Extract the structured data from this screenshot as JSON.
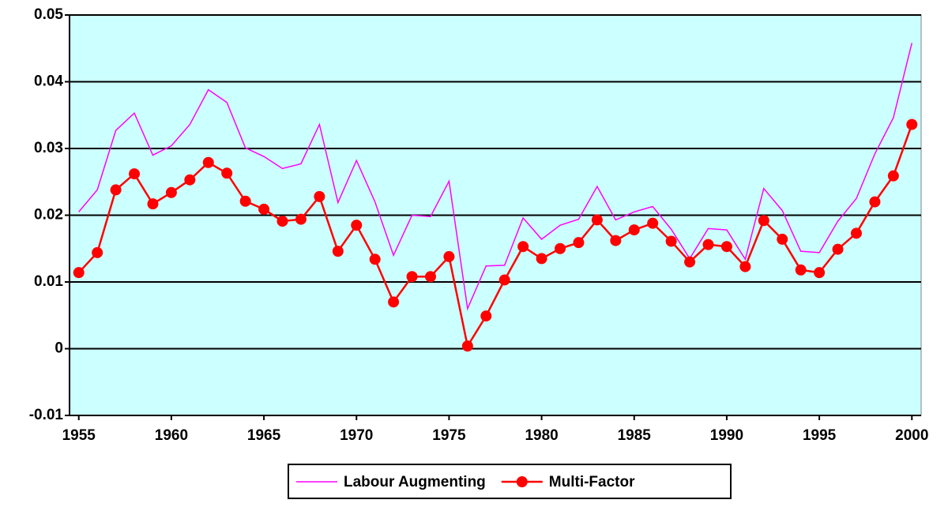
{
  "chart_data": {
    "type": "line",
    "x": [
      1955,
      1956,
      1957,
      1958,
      1959,
      1960,
      1961,
      1962,
      1963,
      1964,
      1965,
      1966,
      1967,
      1968,
      1969,
      1970,
      1971,
      1972,
      1973,
      1974,
      1975,
      1976,
      1977,
      1978,
      1979,
      1980,
      1981,
      1982,
      1983,
      1984,
      1985,
      1986,
      1987,
      1988,
      1989,
      1990,
      1991,
      1992,
      1993,
      1994,
      1995,
      1996,
      1997,
      1998,
      1999,
      2000
    ],
    "series": [
      {
        "name": "Labour Augmenting",
        "color": "#ff00ff",
        "marker": false,
        "values": [
          0.0205,
          0.0238,
          0.0327,
          0.0353,
          0.029,
          0.0304,
          0.0336,
          0.0388,
          0.0369,
          0.0301,
          0.0288,
          0.027,
          0.0277,
          0.0336,
          0.0219,
          0.0282,
          0.022,
          0.014,
          0.02,
          0.0198,
          0.0251,
          0.006,
          0.0124,
          0.0125,
          0.0196,
          0.0164,
          0.0185,
          0.0194,
          0.0243,
          0.0193,
          0.0205,
          0.0213,
          0.0179,
          0.0135,
          0.018,
          0.0178,
          0.0134,
          0.024,
          0.0207,
          0.0146,
          0.0144,
          0.0191,
          0.0225,
          0.0292,
          0.0346,
          0.0458
        ]
      },
      {
        "name": "Multi-Factor",
        "color": "#ff0000",
        "marker": true,
        "values": [
          0.0114,
          0.0144,
          0.0238,
          0.0262,
          0.0217,
          0.0234,
          0.0253,
          0.0279,
          0.0263,
          0.0221,
          0.0209,
          0.0191,
          0.0194,
          0.0228,
          0.0146,
          0.0185,
          0.0134,
          0.007,
          0.0108,
          0.0108,
          0.0138,
          0.0004,
          0.0049,
          0.0103,
          0.0153,
          0.0135,
          0.015,
          0.0159,
          0.0193,
          0.0162,
          0.0178,
          0.0188,
          0.0161,
          0.013,
          0.0156,
          0.0153,
          0.0123,
          0.0192,
          0.0164,
          0.0118,
          0.0114,
          0.0149,
          0.0173,
          0.022,
          0.0259,
          0.0336
        ]
      }
    ],
    "xlim": [
      1954.5,
      2000.5
    ],
    "xticks": [
      1955,
      1960,
      1965,
      1970,
      1975,
      1980,
      1985,
      1990,
      1995,
      2000
    ],
    "ylim": [
      -0.01,
      0.05
    ],
    "yticks": [
      -0.01,
      0,
      0.01,
      0.02,
      0.03,
      0.04,
      0.05
    ],
    "grid": true,
    "plot_background": "#ccffff",
    "legend": "bottom"
  }
}
